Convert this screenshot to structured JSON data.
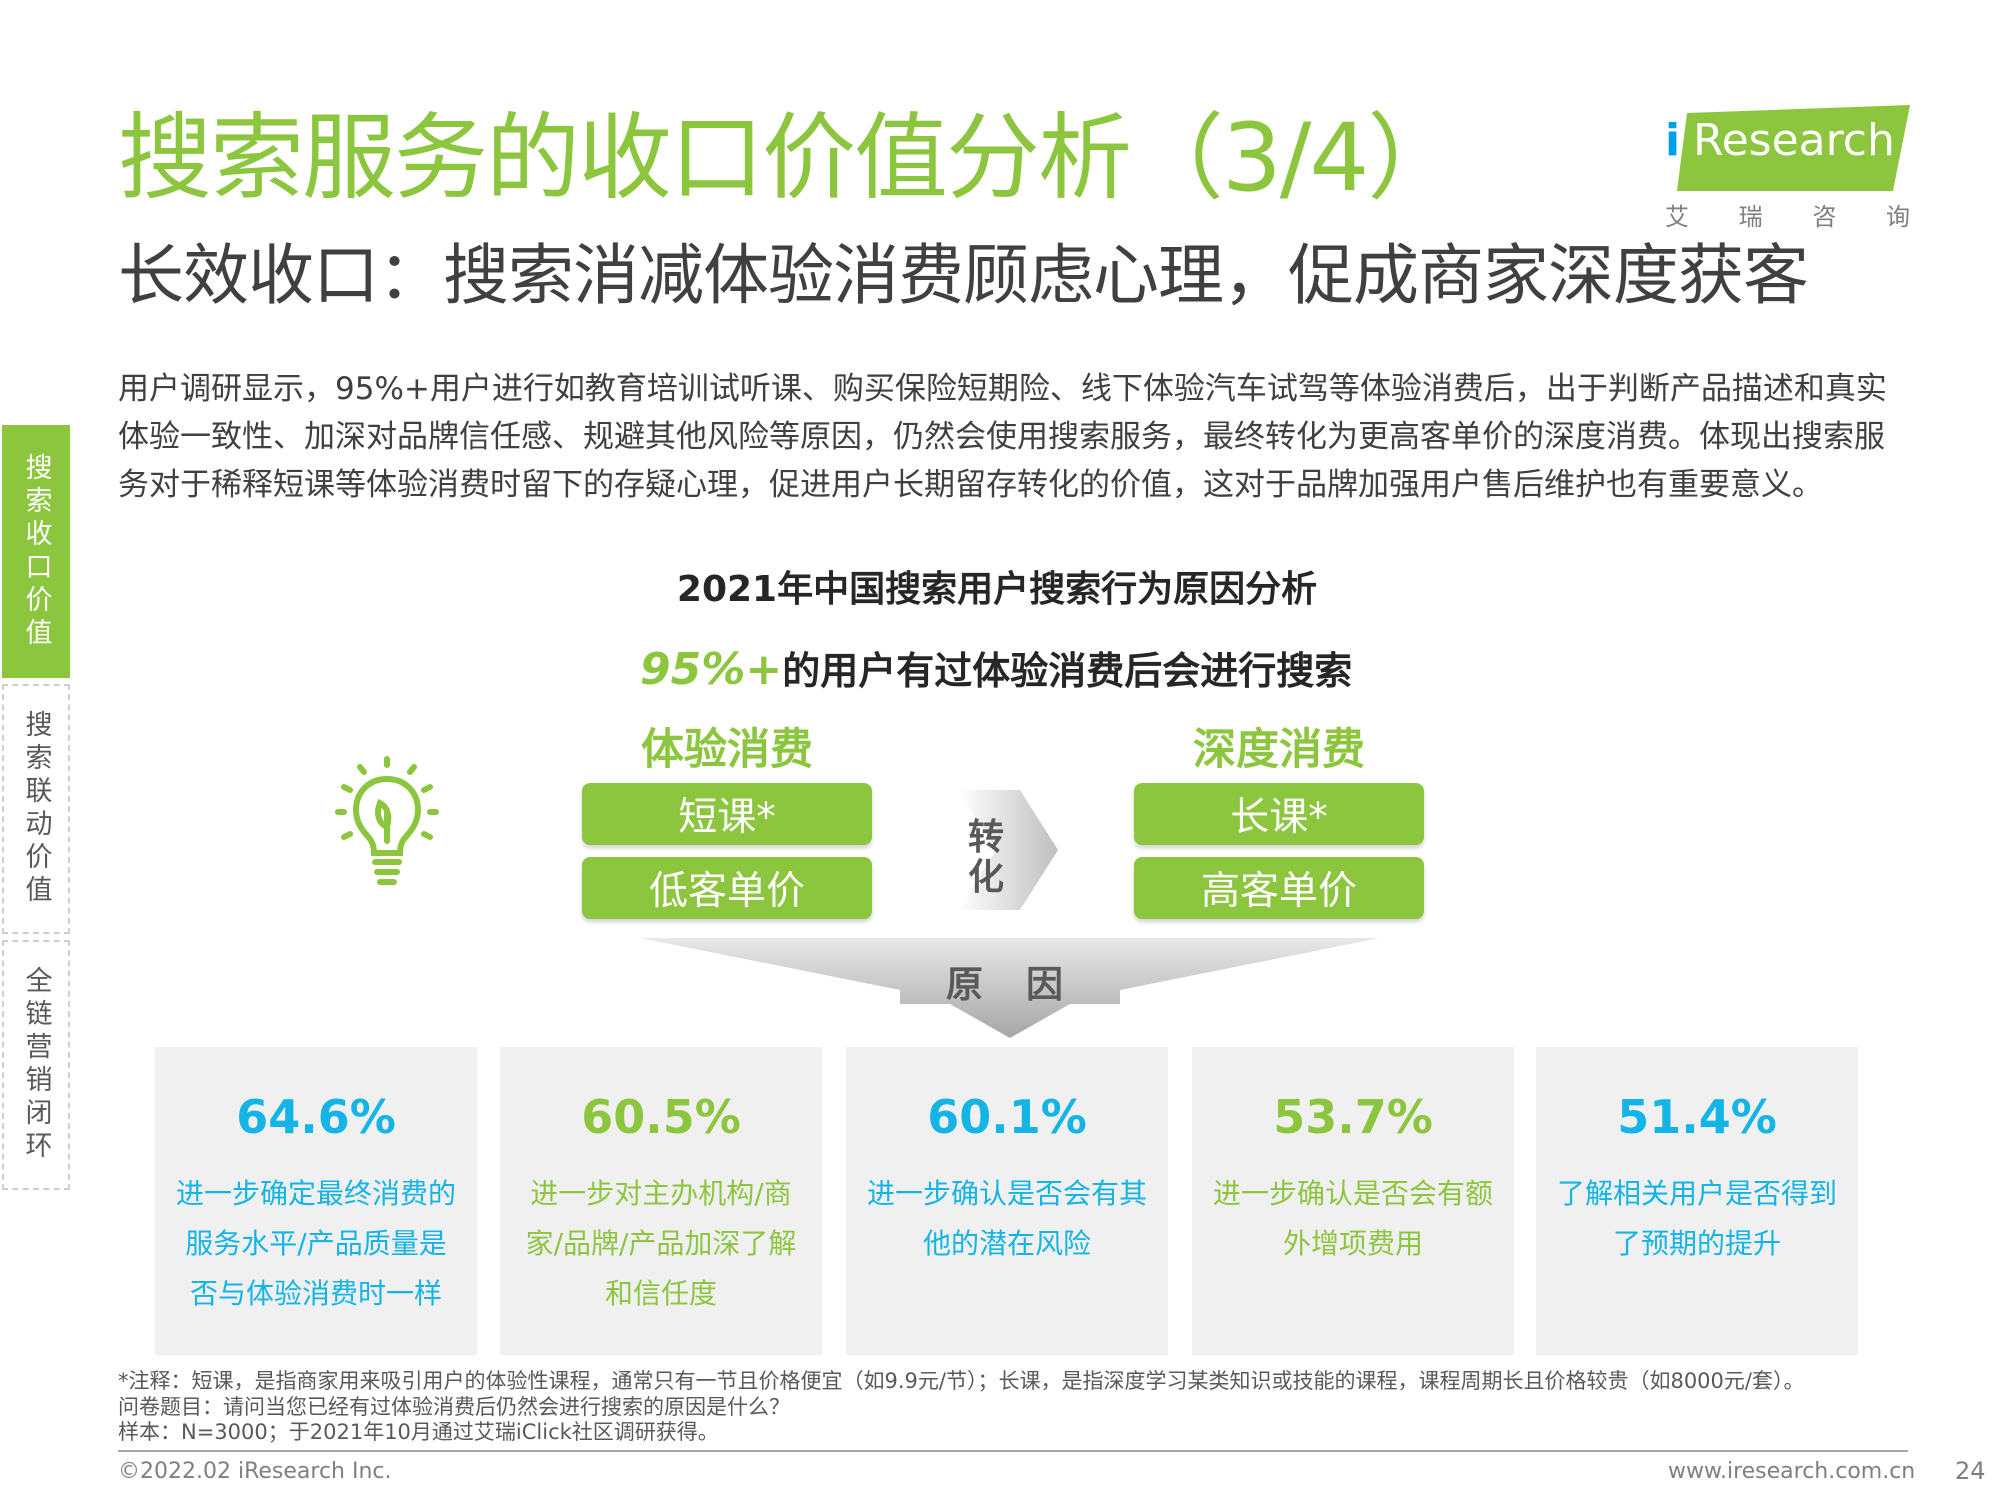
{
  "header": {
    "title": "搜索服务的收口价值分析（3/4）",
    "subtitle": "长效收口：搜索消减体验消费顾虑心理，促成商家深度获客"
  },
  "logo": {
    "i_letter": "i",
    "wordmark": "Research",
    "cn_chars": [
      "艾",
      "瑞",
      "咨",
      "询"
    ],
    "colors": {
      "mark": "#8cc63f",
      "i": "#00a0e9"
    }
  },
  "sidebar": {
    "items": [
      {
        "label": "搜索收口价值",
        "active": true
      },
      {
        "label": "搜索联动价值",
        "active": false
      },
      {
        "label": "全链营销闭环",
        "active": false
      }
    ]
  },
  "intro": "用户调研显示，95%+用户进行如教育培训试听课、购买保险短期险、线下体验汽车试驾等体验消费后，出于判断产品描述和真实体验一致性、加深对品牌信任感、规避其他风险等原因，仍然会使用搜索服务，最终转化为更高客单价的深度消费。体现出搜索服务对于稀释短课等体验消费时留下的存疑心理，促进用户长期留存转化的价值，这对于品牌加强用户售后维护也有重要意义。",
  "chart": {
    "title": "2021年中国搜索用户搜索行为原因分析",
    "highlight_pct": "95%+",
    "highlight_text": "的用户有过体验消费后会进行搜索",
    "experience": {
      "head": "体验消费",
      "items": [
        "短课*",
        "低客单价"
      ]
    },
    "deep": {
      "head": "深度消费",
      "items": [
        "长课*",
        "高客单价"
      ]
    },
    "convert_chars": [
      "转",
      "化"
    ],
    "reason_chars": [
      "原",
      "因"
    ],
    "cards": [
      {
        "pct": "64.6%",
        "desc": "进一步确定最终消费的服务水平/产品质量是否与体验消费时一样",
        "color": "#14b4e6"
      },
      {
        "pct": "60.5%",
        "desc": "进一步对主办机构/商家/品牌/产品加深了解和信任度",
        "color": "#8cc63f"
      },
      {
        "pct": "60.1%",
        "desc": "进一步确认是否会有其他的潜在风险",
        "color": "#14b4e6"
      },
      {
        "pct": "53.7%",
        "desc": "进一步确认是否会有额外增项费用",
        "color": "#8cc63f"
      },
      {
        "pct": "51.4%",
        "desc": "了解相关用户是否得到了预期的提升",
        "color": "#14b4e6"
      }
    ]
  },
  "notes": [
    "*注释：短课，是指商家用来吸引用户的体验性课程，通常只有一节且价格便宜（如9.9元/节）；长课，是指深度学习某类知识或技能的课程，课程周期长且价格较贵（如8000元/套）。",
    "问卷题目：请问当您已经有过体验消费后仍然会进行搜索的原因是什么？",
    "样本：N=3000；于2021年10月通过艾瑞iClick社区调研获得。"
  ],
  "footer": {
    "copyright": "©2022.02 iResearch Inc.",
    "site": "www.iresearch.com.cn",
    "page": "24"
  }
}
